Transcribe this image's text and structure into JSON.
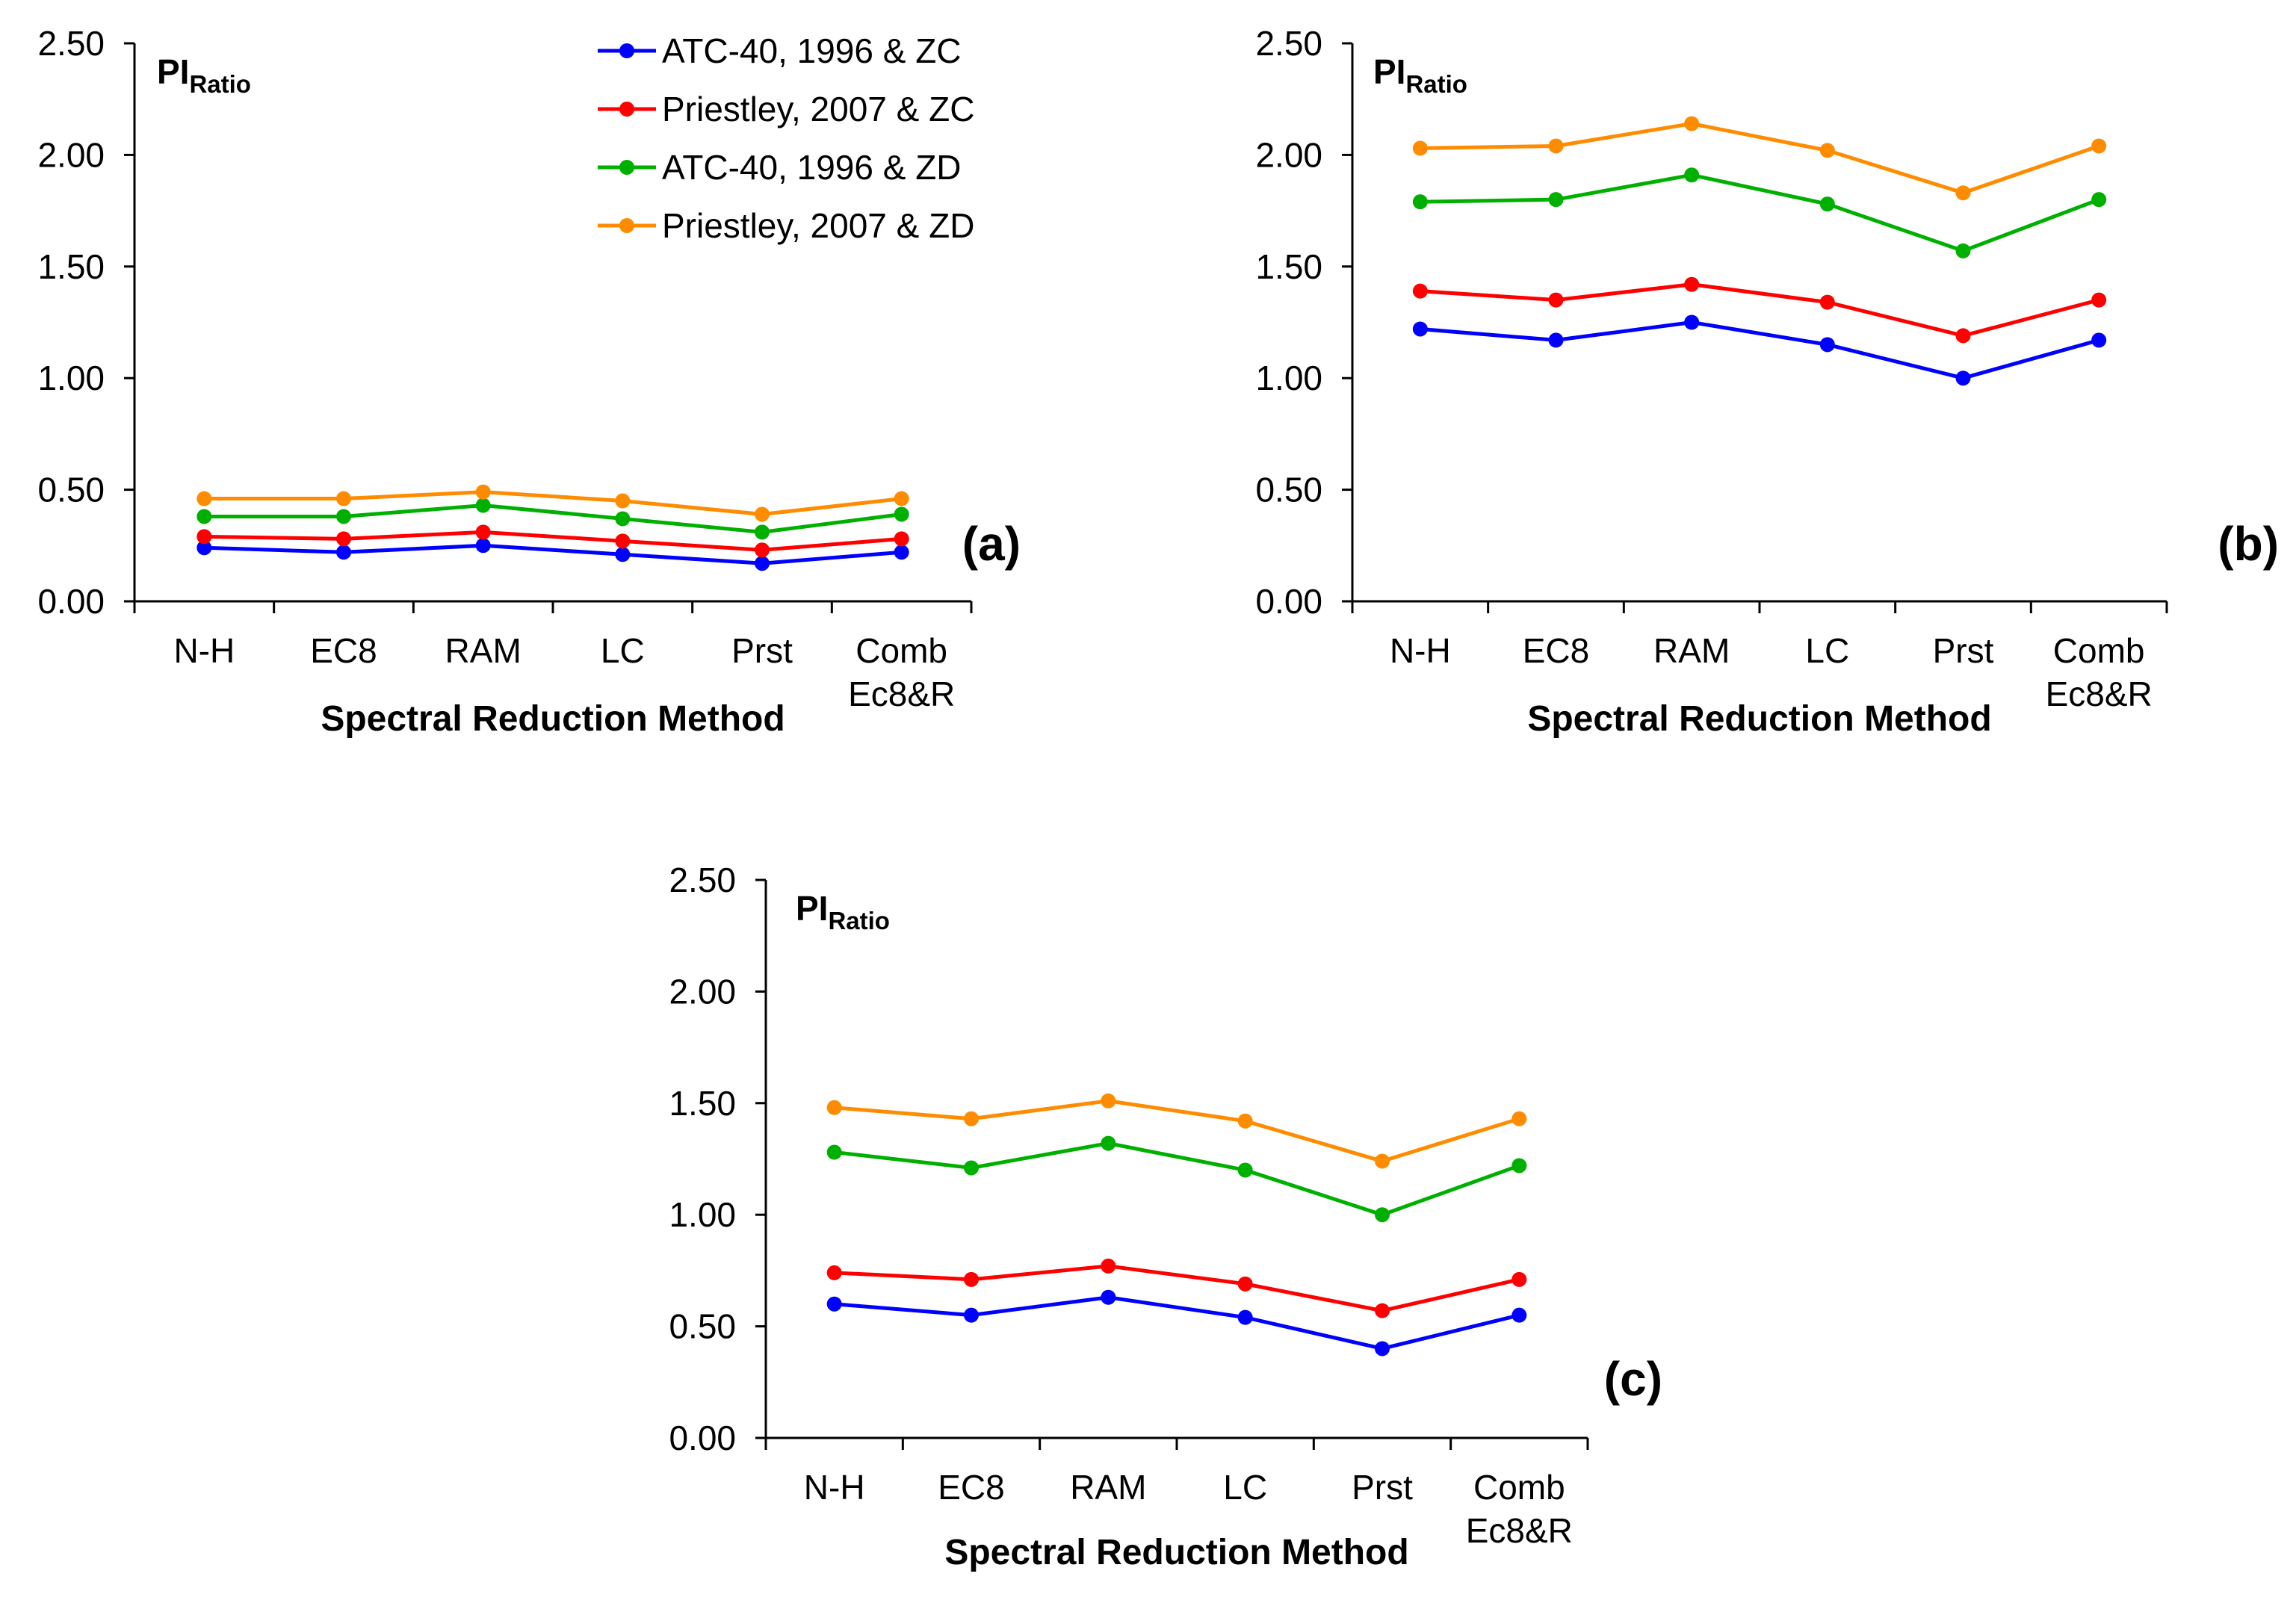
{
  "chart_data": [
    {
      "type": "line",
      "panel": "(a)",
      "ylabel": "PI",
      "ylabel_sub": "Ratio",
      "xlabel": "Spectral Reduction Method",
      "categories": [
        [
          "N-H"
        ],
        [
          "EC8"
        ],
        [
          "RAM"
        ],
        [
          "LC"
        ],
        [
          "Prst"
        ],
        [
          "Comb",
          "Ec8&R"
        ]
      ],
      "ylim": [
        0,
        2.5
      ],
      "yticks": [
        "0.00",
        "0.50",
        "1.00",
        "1.50",
        "2.00",
        "2.50"
      ],
      "legend": "top-right",
      "series": [
        {
          "name": "ATC-40, 1996 & ZC",
          "color": "#0000ff",
          "values": [
            0.24,
            0.22,
            0.25,
            0.21,
            0.17,
            0.22
          ]
        },
        {
          "name": "Priestley, 2007 & ZC",
          "color": "#ff0000",
          "values": [
            0.29,
            0.28,
            0.31,
            0.27,
            0.23,
            0.28
          ]
        },
        {
          "name": "ATC-40, 1996 & ZD",
          "color": "#00b000",
          "values": [
            0.38,
            0.38,
            0.43,
            0.37,
            0.31,
            0.39
          ]
        },
        {
          "name": "Priestley, 2007 & ZD",
          "color": "#ff8c00",
          "values": [
            0.46,
            0.46,
            0.49,
            0.45,
            0.39,
            0.46
          ]
        }
      ]
    },
    {
      "type": "line",
      "panel": "(b)",
      "ylabel": "PI",
      "ylabel_sub": "Ratio",
      "xlabel": "Spectral Reduction Method",
      "categories": [
        [
          "N-H"
        ],
        [
          "EC8"
        ],
        [
          "RAM"
        ],
        [
          "LC"
        ],
        [
          "Prst"
        ],
        [
          "Comb",
          "Ec8&R"
        ]
      ],
      "ylim": [
        0,
        2.5
      ],
      "yticks": [
        "0.00",
        "0.50",
        "1.00",
        "1.50",
        "2.00",
        "2.50"
      ],
      "series": [
        {
          "name": "ATC-40, 1996 & ZC",
          "color": "#0000ff",
          "values": [
            1.22,
            1.17,
            1.25,
            1.15,
            1.0,
            1.17
          ]
        },
        {
          "name": "Priestley, 2007 & ZC",
          "color": "#ff0000",
          "values": [
            1.39,
            1.35,
            1.42,
            1.34,
            1.19,
            1.35
          ]
        },
        {
          "name": "ATC-40, 1996 & ZD",
          "color": "#00b000",
          "values": [
            1.79,
            1.8,
            1.91,
            1.78,
            1.57,
            1.8
          ]
        },
        {
          "name": "Priestley, 2007 & ZD",
          "color": "#ff8c00",
          "values": [
            2.03,
            2.04,
            2.14,
            2.02,
            1.83,
            2.04
          ]
        }
      ]
    },
    {
      "type": "line",
      "panel": "(c)",
      "ylabel": "PI",
      "ylabel_sub": "Ratio",
      "xlabel": "Spectral Reduction Method",
      "categories": [
        [
          "N-H"
        ],
        [
          "EC8"
        ],
        [
          "RAM"
        ],
        [
          "LC"
        ],
        [
          "Prst"
        ],
        [
          "Comb",
          "Ec8&R"
        ]
      ],
      "ylim": [
        0,
        2.5
      ],
      "yticks": [
        "0.00",
        "0.50",
        "1.00",
        "1.50",
        "2.00",
        "2.50"
      ],
      "series": [
        {
          "name": "ATC-40, 1996 & ZC",
          "color": "#0000ff",
          "values": [
            0.6,
            0.55,
            0.63,
            0.54,
            0.4,
            0.55
          ]
        },
        {
          "name": "Priestley, 2007 & ZC",
          "color": "#ff0000",
          "values": [
            0.74,
            0.71,
            0.77,
            0.69,
            0.57,
            0.71
          ]
        },
        {
          "name": "ATC-40, 1996 & ZD",
          "color": "#00b000",
          "values": [
            1.28,
            1.21,
            1.32,
            1.2,
            1.0,
            1.22
          ]
        },
        {
          "name": "Priestley, 2007 & ZD",
          "color": "#ff8c00",
          "values": [
            1.48,
            1.43,
            1.51,
            1.42,
            1.24,
            1.43
          ]
        }
      ]
    }
  ]
}
